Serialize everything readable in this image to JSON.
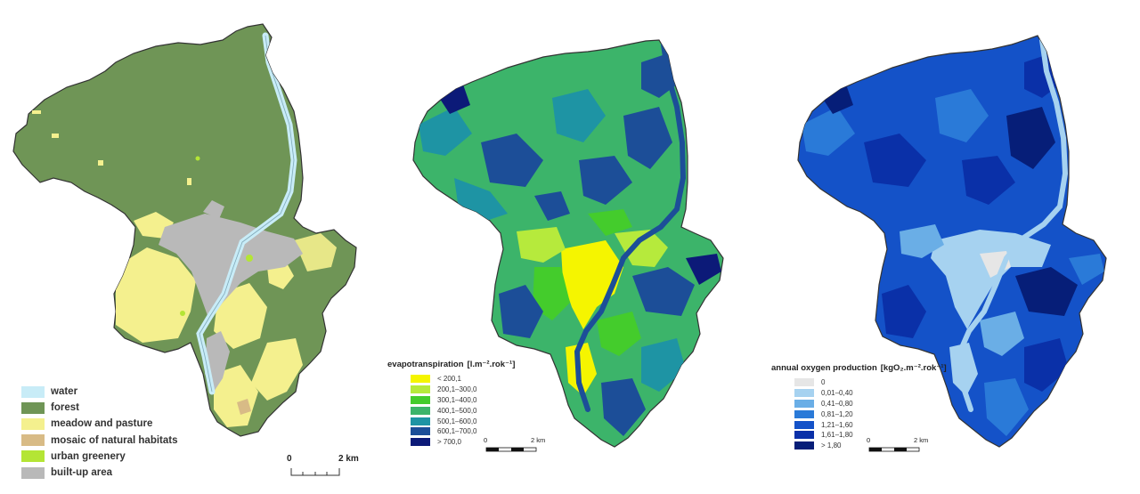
{
  "land_cover_legend": {
    "items": [
      {
        "label": "water",
        "color": "#c8ecf7"
      },
      {
        "label": "forest",
        "color": "#6f9556"
      },
      {
        "label": "meadow and pasture",
        "color": "#f4f08e"
      },
      {
        "label": "mosaic of natural habitats",
        "color": "#d8bb86"
      },
      {
        "label": "urban greenery",
        "color": "#b4e535"
      },
      {
        "label": "built-up area",
        "color": "#b9b9b9"
      }
    ]
  },
  "evapotranspiration_legend": {
    "title": "evapotranspiration",
    "unit": "[l.m⁻².rok⁻¹]",
    "items": [
      {
        "label": "< 200,1",
        "color": "#f5f500"
      },
      {
        "label": "200,1–300,0",
        "color": "#b6ea3c"
      },
      {
        "label": "300,1–400,0",
        "color": "#44cc2c"
      },
      {
        "label": "400,1–500,0",
        "color": "#3cb46a"
      },
      {
        "label": "500,1–600,0",
        "color": "#1e94a4"
      },
      {
        "label": "600,1–700,0",
        "color": "#1c4e98"
      },
      {
        "label": "> 700,0",
        "color": "#0c1a78"
      }
    ]
  },
  "oxygen_legend": {
    "title": "annual oxygen production",
    "unit": "[kgO₂.m⁻².rok⁻¹]",
    "items": [
      {
        "label": "0",
        "color": "#e6e6e6"
      },
      {
        "label": "0,01–0,40",
        "color": "#a6d2f0"
      },
      {
        "label": "0,41–0,80",
        "color": "#6aaee6"
      },
      {
        "label": "0,81–1,20",
        "color": "#2a7ad8"
      },
      {
        "label": "1,21–1,60",
        "color": "#1452c8"
      },
      {
        "label": "1,61–1,80",
        "color": "#0a30a8"
      },
      {
        "label": "> 1,80",
        "color": "#061e78"
      }
    ]
  },
  "scale_bars": [
    {
      "start": "0",
      "end": "2 km"
    },
    {
      "start": "0",
      "end": "2 km"
    },
    {
      "start": "0",
      "end": "2 km"
    }
  ]
}
